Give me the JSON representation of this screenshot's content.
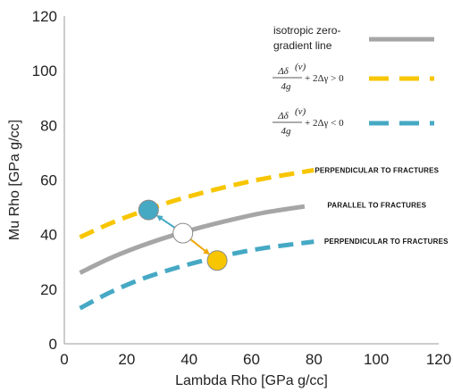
{
  "chart_data": {
    "type": "line",
    "xlabel": "Lambda Rho [GPa g/cc]",
    "ylabel": "Mu Rho [GPa g/cc]",
    "xlim": [
      0,
      120
    ],
    "ylim": [
      0,
      120
    ],
    "xticks": [
      0,
      20,
      40,
      60,
      80,
      100,
      120
    ],
    "yticks": [
      0,
      20,
      40,
      60,
      80,
      100,
      120
    ],
    "grid": false,
    "legend_position": "top-right",
    "series": [
      {
        "name": "isotropic zero-gradient line",
        "style": "solid",
        "color": "#a6a6a6",
        "x": [
          5,
          15,
          25,
          35,
          45,
          55,
          65,
          77
        ],
        "y": [
          26,
          31.5,
          36,
          39.8,
          43,
          45.8,
          48.2,
          50.3
        ]
      },
      {
        "name": "Δδ(v)/4g + 2Δγ > 0",
        "style": "dashed",
        "color": "#f7c600",
        "x": [
          5,
          15,
          25,
          35,
          45,
          55,
          65,
          80
        ],
        "y": [
          39,
          44.2,
          48.5,
          52.3,
          55.5,
          58.3,
          60.7,
          63.6
        ]
      },
      {
        "name": "Δδ(v)/4g + 2Δγ < 0",
        "style": "dashed",
        "color": "#46a9c4",
        "x": [
          5,
          15,
          25,
          35,
          45,
          55,
          65,
          80
        ],
        "y": [
          13,
          19,
          23.8,
          27.5,
          30.6,
          33.2,
          35.2,
          37.4
        ]
      }
    ],
    "points": [
      {
        "name": "isotropic",
        "x": 38,
        "y": 40.5,
        "color": "#ffffff"
      },
      {
        "name": "blue",
        "x": 27,
        "y": 49,
        "color": "#46a9c4"
      },
      {
        "name": "orange",
        "x": 49,
        "y": 30.5,
        "color": "#f7c600"
      }
    ],
    "arrow_color": "#46a9c4",
    "arrow_color_orange": "#f0a500",
    "annotations": [
      {
        "text": "PERPENDICULAR  TO FRACTURES",
        "x": 78,
        "y": 63.6
      },
      {
        "text": "PARALLEL  TO FRACTURES",
        "x": 82,
        "y": 50.8
      },
      {
        "text": "PERPENDICULAR  TO FRACTURES",
        "x": 81,
        "y": 37.6
      }
    ],
    "legend": {
      "line1": "isotropic zero-",
      "line2": "gradient line",
      "formula1_rest": "+ 2Δγ > 0",
      "formula2_rest": "+ 2Δγ < 0",
      "num": "Δδ",
      "sup": "(v)",
      "den": "4g"
    }
  }
}
